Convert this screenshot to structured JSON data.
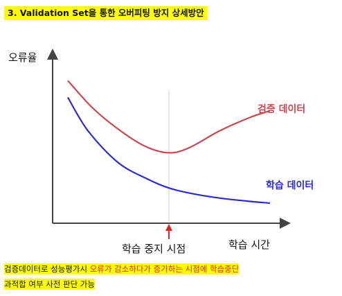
{
  "title": "3. Validation Set을 통한 오버피팅 방지 상세방안",
  "chart_data": {
    "type": "line",
    "ylabel": "오류율",
    "xlabel": "학습 시간",
    "stop_marker_label": "학습 중지 시점",
    "series": [
      {
        "name": "검증 데이터",
        "color": "#c8474f",
        "x": [
          0.0,
          0.12,
          0.25,
          0.38,
          0.5,
          0.6,
          0.75,
          0.9,
          1.0
        ],
        "y": [
          0.85,
          0.69,
          0.56,
          0.46,
          0.42,
          0.45,
          0.55,
          0.63,
          0.67
        ]
      },
      {
        "name": "학습 데이터",
        "color": "#2a2ad0",
        "x": [
          0.0,
          0.1,
          0.25,
          0.4,
          0.5,
          0.6,
          0.75,
          0.9,
          1.0
        ],
        "y": [
          0.75,
          0.55,
          0.36,
          0.26,
          0.21,
          0.18,
          0.15,
          0.13,
          0.12
        ]
      }
    ],
    "xlim": [
      0,
      1.0
    ],
    "ylim": [
      0,
      1.0
    ],
    "stop_x": 0.5,
    "grid": false,
    "colors": {
      "axis": "#444444",
      "stop_line": "#cccccc",
      "arrow": "#e2231a"
    }
  },
  "note": {
    "part1": "검증데이터로 성능평가시 ",
    "part2_red": "오류가 감소하다가 증가하는 시점에 학습중단",
    "line2": "과적합 여부 사전 판단 가능"
  }
}
